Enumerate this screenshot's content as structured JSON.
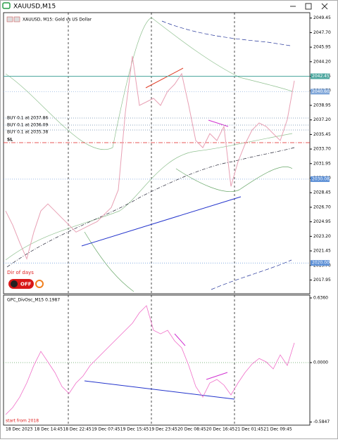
{
  "window": {
    "title": "XAUUSD,M15"
  },
  "chart": {
    "symbol_label": "XAUUSD, M15:  Gold vs US Dollar",
    "trade_labels": [
      "BUY 0.1 at 2037.86",
      "BUY 0.1 at 2036.09",
      "BUY 0.1 at 2035.38"
    ],
    "sl_label": "SL",
    "indicator_label": "Dir of days",
    "button_label": "OFF",
    "price": {
      "ylim": [
        2016.3,
        2050.1
      ],
      "color": "#e8a0b4",
      "yticks": [
        2049.45,
        {
          "value": 2047.7,
          "label": "2047.70"
        },
        2045.95,
        {
          "value": 2044.2,
          "label": "2044.20"
        },
        2042.45,
        {
          "value": 2040.7,
          "label": "2040.70"
        },
        2038.95,
        {
          "value": 2037.2,
          "label": "2037.20"
        },
        2035.45,
        {
          "value": 2033.7,
          "label": "2033.70"
        },
        2031.95,
        {
          "value": 2030.2,
          "label": "2030.20"
        },
        2028.45,
        {
          "value": 2026.7,
          "label": "2026.70"
        },
        2024.95,
        {
          "value": 2023.2,
          "label": "2023.20"
        },
        2021.45,
        {
          "value": 2019.7,
          "label": "2019.70"
        },
        2017.95
      ],
      "price_levels": [
        {
          "value": 2042.45,
          "label": "2042.45",
          "color": "#4fa8a0"
        },
        {
          "value": 2040.6,
          "label": "2040.60",
          "color": "#7fa6d9"
        },
        {
          "value": 2030.08,
          "label": "2030.08",
          "color": "#5b8fd6"
        },
        {
          "value": 2020.0,
          "label": "2020.00",
          "color": "#5b8fd6"
        }
      ],
      "values": [
        2026.25,
        2024.56,
        2022.44,
        2020.49,
        2023.71,
        2026.25,
        2027.1,
        2026.25,
        2025.4,
        2024.56,
        2023.71,
        2024.13,
        2024.56,
        2024.98,
        2025.83,
        2026.67,
        2028.79,
        2038.1,
        2044.88,
        2038.95,
        2039.37,
        2039.8,
        2038.95,
        2040.64,
        2041.49,
        2042.76,
        2038.95,
        2034.72,
        2033.87,
        2035.56,
        2034.72,
        2036.41,
        2029.21,
        2032.18,
        2034.29,
        2035.99,
        2036.83,
        2036.41,
        2035.56,
        2034.72,
        2037.26,
        2041.91
      ]
    },
    "oscillator": {
      "name_label": "GPC_DivOsc_M15 0.1987",
      "note": "start from 2018",
      "ylim": [
        -0.615,
        0.6636
      ],
      "color": "#f06ec8",
      "yticks": [
        {
          "value": 0.636,
          "label": "0.6360"
        },
        {
          "value": 0,
          "label": "0.0000"
        },
        -0.5847
      ],
      "values": [
        -0.511,
        -0.442,
        -0.339,
        -0.2,
        -0.028,
        0.111,
        0.007,
        -0.097,
        -0.235,
        -0.304,
        -0.2,
        -0.131,
        -0.028,
        0.041,
        0.111,
        0.18,
        0.249,
        0.318,
        0.387,
        0.491,
        0.56,
        0.318,
        0.283,
        0.318,
        0.214,
        0.145,
        -0.028,
        -0.235,
        -0.339,
        -0.2,
        -0.166,
        -0.221,
        -0.318,
        -0.2,
        -0.097,
        -0.014,
        0.041,
        0.007,
        -0.062,
        0.076,
        -0.028,
        0.194
      ]
    },
    "time_labels": [
      "18 Dec 2023",
      "18 Dec 14:45",
      "18 Dec 22:45",
      "19 Dec 07:45",
      "19 Dec 15:45",
      "19 Dec 23:45",
      "20 Dec 08:45",
      "20 Dec 16:45",
      "21 Dec 01:45",
      "21 Dec 09:45"
    ]
  }
}
